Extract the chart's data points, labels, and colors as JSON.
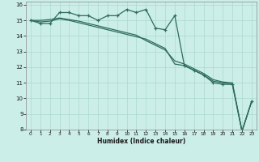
{
  "xlabel": "Humidex (Indice chaleur)",
  "background_color": "#cceee8",
  "grid_color": "#aad8d0",
  "line_color": "#2d6b5e",
  "x_values": [
    0,
    1,
    2,
    3,
    4,
    5,
    6,
    7,
    8,
    9,
    10,
    11,
    12,
    13,
    14,
    15,
    16,
    17,
    18,
    19,
    20,
    21,
    22,
    23
  ],
  "series_jagged": [
    15.0,
    14.8,
    14.8,
    15.5,
    15.5,
    15.3,
    15.3,
    15.0,
    15.3,
    15.3,
    15.7,
    15.5,
    15.7,
    14.5,
    14.4,
    15.3,
    12.1,
    11.8,
    11.5,
    11.0,
    10.9,
    10.9,
    7.9,
    9.8
  ],
  "series_line1": [
    15.0,
    14.9,
    14.95,
    15.1,
    15.0,
    14.85,
    14.7,
    14.55,
    14.4,
    14.25,
    14.1,
    13.95,
    13.8,
    13.5,
    13.2,
    12.2,
    12.1,
    11.8,
    11.5,
    11.1,
    11.0,
    10.9,
    7.9,
    9.8
  ],
  "series_line2": [
    15.0,
    15.0,
    15.05,
    15.15,
    15.05,
    14.95,
    14.8,
    14.65,
    14.5,
    14.35,
    14.2,
    14.05,
    13.7,
    13.4,
    13.1,
    12.4,
    12.2,
    11.9,
    11.6,
    11.2,
    11.05,
    11.0,
    7.9,
    9.8
  ],
  "ylim": [
    8,
    16.2
  ],
  "xlim": [
    -0.5,
    23.5
  ],
  "yticks": [
    8,
    9,
    10,
    11,
    12,
    13,
    14,
    15,
    16
  ],
  "xticks": [
    0,
    1,
    2,
    3,
    4,
    5,
    6,
    7,
    8,
    9,
    10,
    11,
    12,
    13,
    14,
    15,
    16,
    17,
    18,
    19,
    20,
    21,
    22,
    23
  ]
}
